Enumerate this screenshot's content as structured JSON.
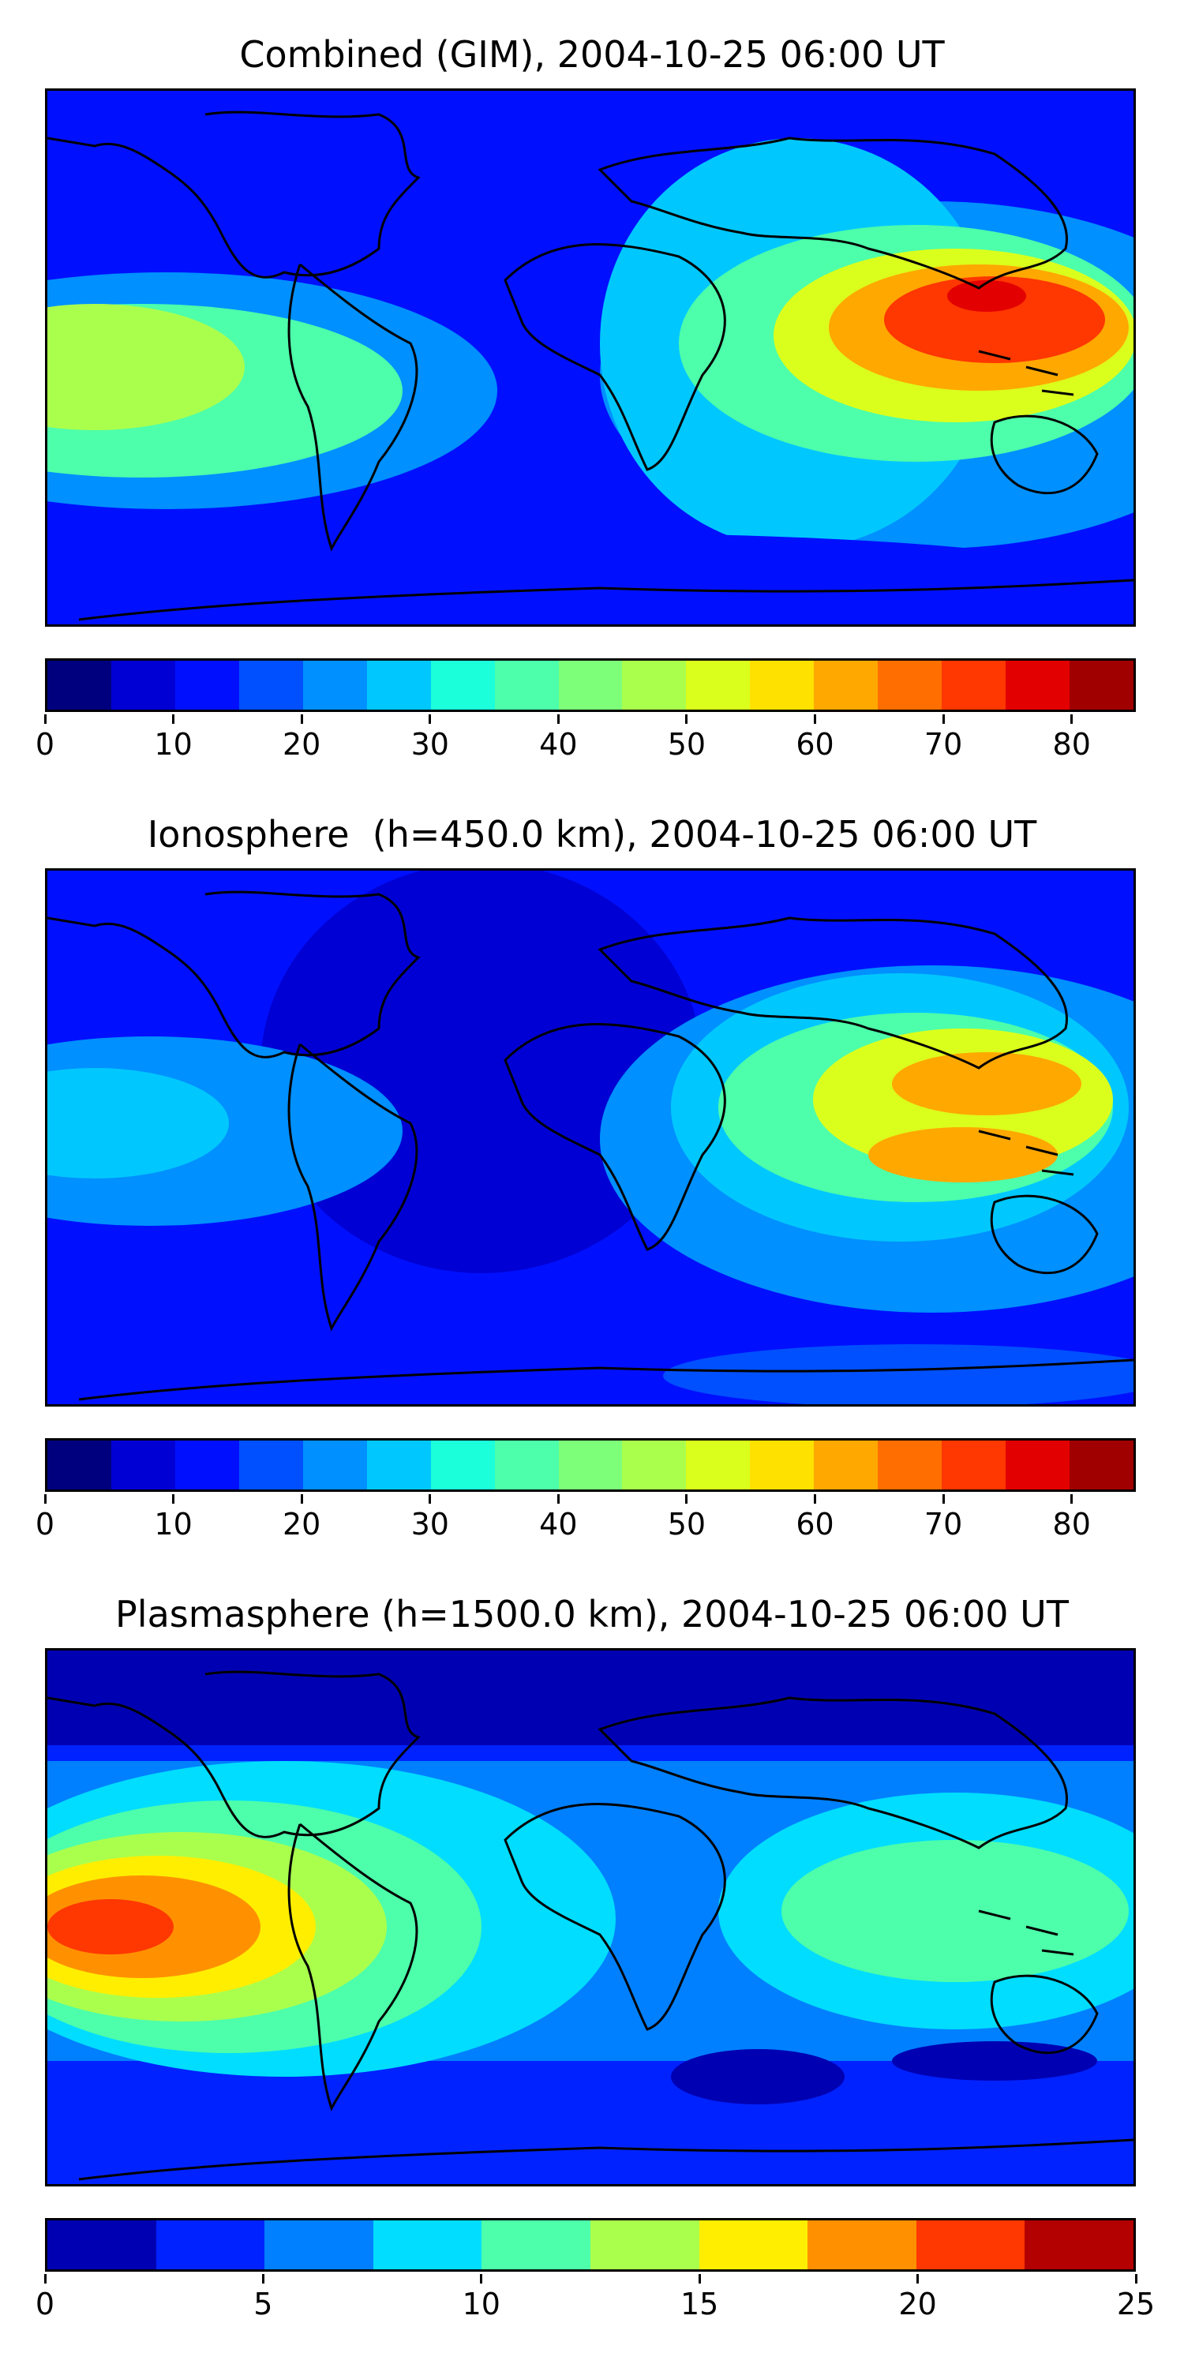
{
  "panels": [
    {
      "id": "combined",
      "title": "Combined (GIM), 2004-10-25 06:00 UT",
      "colorbar": {
        "min": 0,
        "max": 85,
        "step": 5,
        "ticks": [
          "0",
          "10",
          "20",
          "30",
          "40",
          "50",
          "60",
          "70",
          "80"
        ],
        "tick_values": [
          0,
          10,
          20,
          30,
          40,
          50,
          60,
          70,
          80
        ]
      }
    },
    {
      "id": "ionosphere",
      "title": "Ionosphere  (h=450.0 km), 2004-10-25 06:00 UT",
      "colorbar": {
        "min": 0,
        "max": 85,
        "step": 5,
        "ticks": [
          "0",
          "10",
          "20",
          "30",
          "40",
          "50",
          "60",
          "70",
          "80"
        ],
        "tick_values": [
          0,
          10,
          20,
          30,
          40,
          50,
          60,
          70,
          80
        ]
      }
    },
    {
      "id": "plasmasphere",
      "title": "Plasmasphere (h=1500.0 km), 2004-10-25 06:00 UT",
      "colorbar": {
        "min": 0,
        "max": 25,
        "step": 2.5,
        "ticks": [
          "0",
          "5",
          "10",
          "15",
          "20",
          "25"
        ],
        "tick_values": [
          0,
          5,
          10,
          15,
          20,
          25
        ]
      }
    }
  ],
  "colormap_jet_17": [
    "#00007f",
    "#0000d4",
    "#0010ff",
    "#0050ff",
    "#0090ff",
    "#00c8ff",
    "#1cffdb",
    "#4dffaa",
    "#7dff7a",
    "#aaff4d",
    "#dbff1c",
    "#ffe100",
    "#ffa800",
    "#ff6e00",
    "#ff3700",
    "#e30000",
    "#a10000"
  ],
  "colormap_jet_10": [
    "#0000b3",
    "#0022ff",
    "#0080ff",
    "#00ddff",
    "#4dffaa",
    "#aaff4d",
    "#ffee00",
    "#ff9100",
    "#ff3700",
    "#b30000"
  ],
  "background": "#0a33ff"
}
